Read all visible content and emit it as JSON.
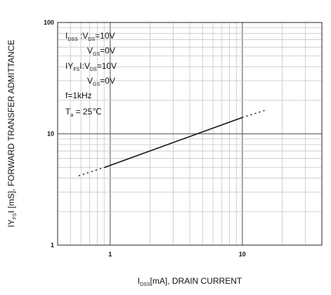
{
  "chart_data": {
    "type": "line",
    "x_scale": "log",
    "y_scale": "log",
    "xlim": [
      0.4,
      40
    ],
    "ylim": [
      1,
      100
    ],
    "grid": true,
    "x_ticks": [
      "1",
      "10"
    ],
    "y_ticks": [
      "1",
      "10",
      "100"
    ],
    "xlabel": {
      "main": "I",
      "sub": "DSS",
      "rest": "[mA], DRAIN CURRENT"
    },
    "ylabel": {
      "pre": "IY",
      "sub": "FS",
      "rest": "I [mS], FORWARD TRANSFER ADMITTANCE"
    },
    "series": [
      {
        "style": "solid",
        "points": [
          [
            0.91,
            5.0
          ],
          [
            10.0,
            14.0
          ]
        ]
      },
      {
        "style": "dotted",
        "points": [
          [
            0.58,
            4.2
          ],
          [
            0.91,
            5.0
          ]
        ]
      },
      {
        "style": "dotted",
        "points": [
          [
            10.0,
            14.0
          ],
          [
            15.5,
            16.5
          ]
        ]
      }
    ],
    "annotations": [
      {
        "pre": "I",
        "sub": "DSS",
        "mid": " :V",
        "sub2": "DS",
        "post": "=10V"
      },
      {
        "pre": "V",
        "sub": "GS",
        "mid": "",
        "sub2": "",
        "post": "=0V"
      },
      {
        "pre": "IY",
        "sub": "FS",
        "mid": "I:V",
        "sub2": "DS",
        "post": "=10V"
      },
      {
        "pre": "V",
        "sub": "GS",
        "mid": "",
        "sub2": "",
        "post": "=0V"
      },
      {
        "pre": "f=1kHz",
        "sub": "",
        "mid": "",
        "sub2": "",
        "post": ""
      },
      {
        "pre": "T",
        "sub": "a",
        "mid": "",
        "sub2": "",
        "post": " = 25℃"
      }
    ]
  }
}
